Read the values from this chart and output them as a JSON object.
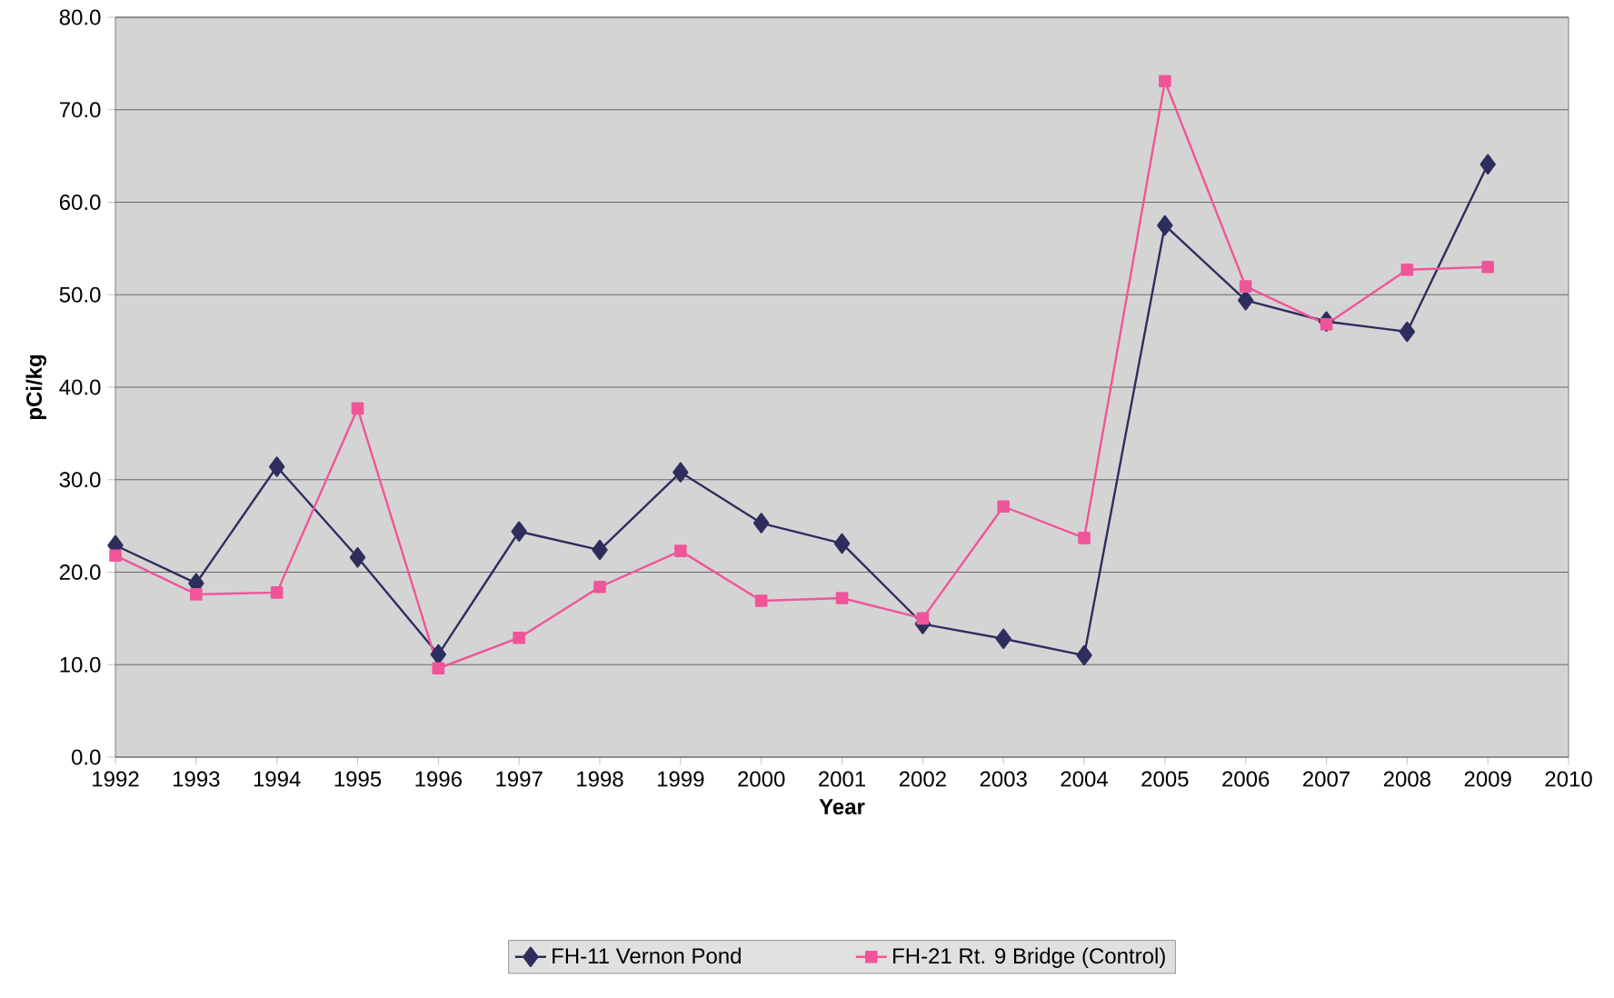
{
  "chart_data": {
    "type": "line",
    "xlabel": "Year",
    "ylabel": "pCi/kg",
    "x": [
      1992,
      1993,
      1994,
      1995,
      1996,
      1997,
      1998,
      1999,
      2000,
      2001,
      2002,
      2003,
      2004,
      2005,
      2006,
      2007,
      2008,
      2009
    ],
    "series": [
      {
        "name": "FH-11 Vernon Pond",
        "color": "#2e2e5e",
        "marker": "diamond",
        "values": [
          22.9,
          18.8,
          31.4,
          21.6,
          11.1,
          24.4,
          22.4,
          30.8,
          25.3,
          23.1,
          14.4,
          12.8,
          11.0,
          57.5,
          49.4,
          47.1,
          46.0,
          64.1
        ]
      },
      {
        "name": "FH-21 Rt. 9 Bridge (Control)",
        "color": "#f0559a",
        "marker": "square",
        "values": [
          21.8,
          17.6,
          17.8,
          37.7,
          9.6,
          12.9,
          18.4,
          22.3,
          16.9,
          17.2,
          15.0,
          27.1,
          23.7,
          73.1,
          50.9,
          46.8,
          52.7,
          53.0
        ]
      }
    ],
    "xlim": [
      1992,
      2010
    ],
    "xticks": [
      1992,
      1993,
      1994,
      1995,
      1996,
      1997,
      1998,
      1999,
      2000,
      2001,
      2002,
      2003,
      2004,
      2005,
      2006,
      2007,
      2008,
      2009,
      2010
    ],
    "ylim": [
      0,
      80
    ],
    "yticks": [
      {
        "value": 0,
        "label": "0.0"
      },
      {
        "value": 10,
        "label": "10.0"
      },
      {
        "value": 20,
        "label": "20.0"
      },
      {
        "value": 30,
        "label": "30.0"
      },
      {
        "value": 40,
        "label": "40.0"
      },
      {
        "value": 50,
        "label": "50.0"
      },
      {
        "value": 60,
        "label": "60.0"
      },
      {
        "value": 70,
        "label": "70.0"
      },
      {
        "value": 80,
        "label": "80.0"
      }
    ],
    "grid": "y",
    "legend": "bottom",
    "line_style": "solid"
  }
}
